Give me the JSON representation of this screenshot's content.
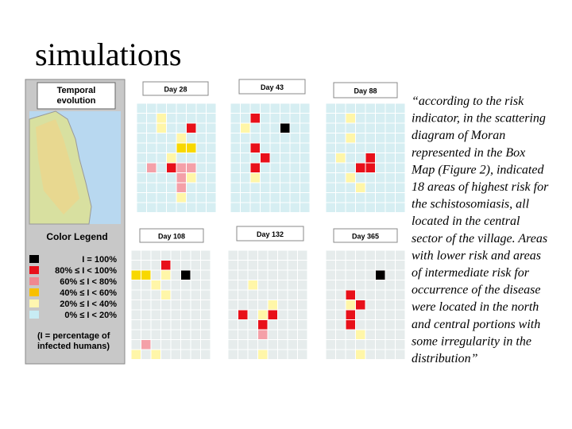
{
  "title": "simulations",
  "panel": {
    "header": [
      "Temporal",
      "evolution"
    ],
    "legend_title": "Color Legend",
    "legend": [
      "I =  100%",
      "80% ≤ I < 100%",
      "60% ≤ I <   80%",
      "40% ≤ I <   60%",
      "20% ≤ I <   40%",
      "0%  ≤ I <   20%"
    ],
    "note": [
      "(I = percentage of",
      "infected humans)"
    ]
  },
  "days": [
    "Day 28",
    "Day 43",
    "Day 88",
    "Day 108",
    "Day 132",
    "Day 365"
  ],
  "quote": [
    "“according to the risk",
    "indicator, in the scattering",
    "diagram of Moran",
    "represented in the Box",
    "Map (Figure 2), indicated",
    "18 areas of highest risk for",
    "the schistosomiasis, all",
    "located in the central",
    "sector of the village. Areas",
    "with lower risk and areas",
    "of intermediate risk for",
    "occurrence of the disease",
    "were located in the north",
    "and central portions with",
    "some irregularity in the",
    "distribution”"
  ]
}
